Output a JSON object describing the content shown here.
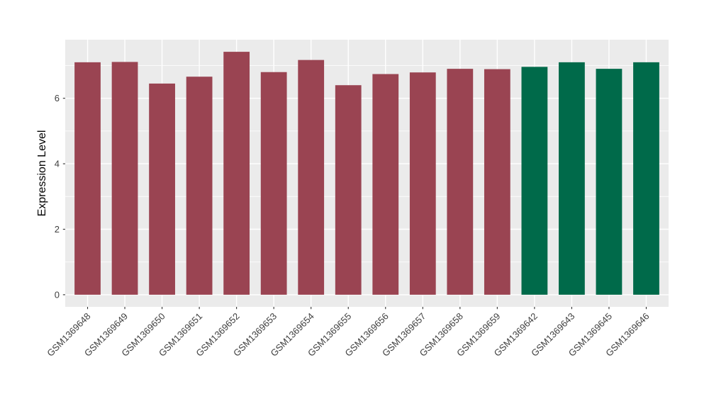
{
  "figure": {
    "background": "#FFFFFF",
    "panel_background": "#EBEBEB",
    "grid_color": "#FFFFFF",
    "axis_text_color": "#404040",
    "axis_title_color": "#000000",
    "tick_color": "#333333"
  },
  "chart_data": {
    "type": "bar",
    "title": "",
    "xlabel": "",
    "ylabel": "Expression Level",
    "categories": [
      "GSM1369648",
      "GSM1369649",
      "GSM1369650",
      "GSM1369651",
      "GSM1369652",
      "GSM1369653",
      "GSM1369654",
      "GSM1369655",
      "GSM1369656",
      "GSM1369657",
      "GSM1369658",
      "GSM1369659",
      "GSM1369642",
      "GSM1369643",
      "GSM1369645",
      "GSM1369646"
    ],
    "values": [
      7.1,
      7.11,
      6.45,
      6.66,
      7.42,
      6.8,
      7.17,
      6.4,
      6.74,
      6.79,
      6.9,
      6.89,
      6.96,
      7.1,
      6.9,
      7.1
    ],
    "bar_colors": [
      "#9A4452",
      "#9A4452",
      "#9A4452",
      "#9A4452",
      "#9A4452",
      "#9A4452",
      "#9A4452",
      "#9A4452",
      "#9A4452",
      "#9A4452",
      "#9A4452",
      "#9A4452",
      "#006A4A",
      "#006A4A",
      "#006A4A",
      "#006A4A"
    ],
    "group_colors": {
      "maroon": "#9A4452",
      "green": "#006A4A"
    },
    "yticks": [
      0,
      2,
      4,
      6
    ],
    "yticks_minor": [
      1,
      3,
      5,
      7
    ],
    "ylim": [
      -0.37,
      7.79
    ],
    "bar_width_frac": 0.7,
    "x_label_angle_deg": -45,
    "legend": "none",
    "grid": "on"
  }
}
